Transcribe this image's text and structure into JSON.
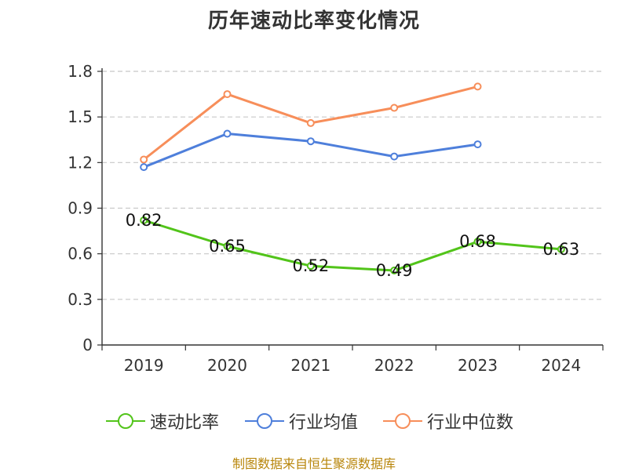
{
  "chart_data": {
    "type": "line",
    "title": "历年速动比率变化情况",
    "categories": [
      "2019",
      "2020",
      "2021",
      "2022",
      "2023",
      "2024"
    ],
    "ylim": [
      0,
      1.8
    ],
    "yticks": [
      "0",
      "0.3",
      "0.6",
      "0.9",
      "1.2",
      "1.5",
      "1.8"
    ],
    "grid": true,
    "legend_position": "bottom",
    "series": [
      {
        "name": "速动比率",
        "color": "#52c41a",
        "values": [
          0.82,
          0.65,
          0.52,
          0.49,
          0.68,
          0.63
        ],
        "labels": [
          "0.82",
          "0.65",
          "0.52",
          "0.49",
          "0.68",
          "0.63"
        ]
      },
      {
        "name": "行业均值",
        "color": "#4e7fdb",
        "values": [
          1.17,
          1.39,
          1.34,
          1.24,
          1.32,
          null
        ]
      },
      {
        "name": "行业中位数",
        "color": "#f78e5a",
        "values": [
          1.22,
          1.65,
          1.46,
          1.56,
          1.7,
          null
        ]
      }
    ]
  },
  "legend": {
    "items": [
      "速动比率",
      "行业均值",
      "行业中位数"
    ]
  },
  "source_note": "制图数据来自恒生聚源数据库"
}
